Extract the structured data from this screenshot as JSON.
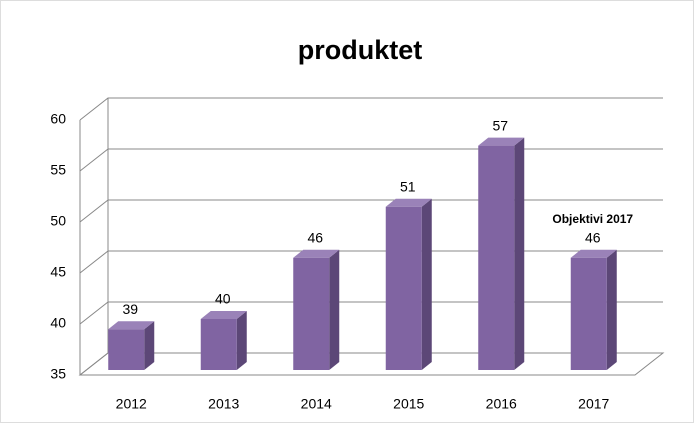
{
  "chart_data": {
    "type": "bar3d",
    "title": "produktet",
    "categories": [
      "2012",
      "2013",
      "2014",
      "2015",
      "2016",
      "2017"
    ],
    "values": [
      39,
      40,
      46,
      51,
      57,
      46
    ],
    "color": "#8064a2",
    "ylim": [
      35,
      60
    ],
    "yticks": [
      35,
      40,
      45,
      50,
      55,
      60
    ],
    "grid": true,
    "annotation": "Objektivi 2017"
  }
}
